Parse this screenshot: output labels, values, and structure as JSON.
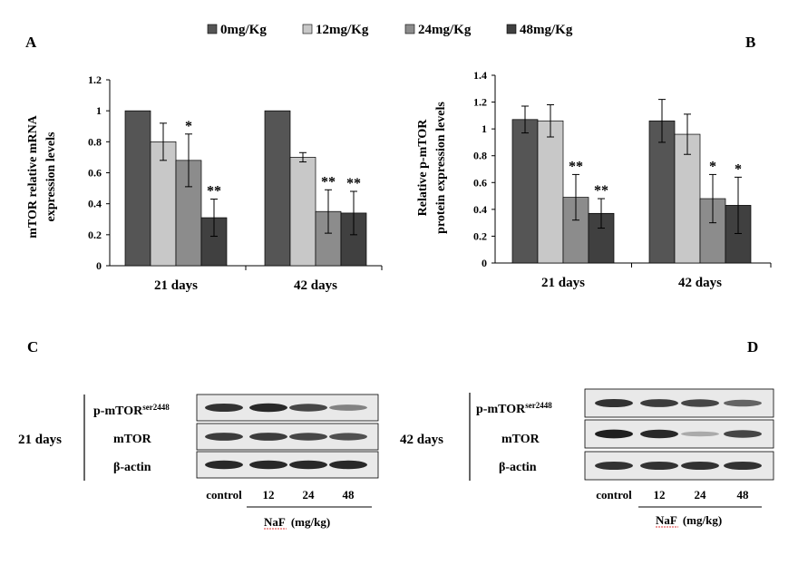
{
  "legend": [
    {
      "label": "0mg/Kg",
      "color": "#555555"
    },
    {
      "label": "12mg/Kg",
      "color": "#c8c8c8"
    },
    {
      "label": "24mg/Kg",
      "color": "#8c8c8c"
    },
    {
      "label": "48mg/Kg",
      "color": "#404040"
    }
  ],
  "chart_data": [
    {
      "type": "bar",
      "panel": "A",
      "ylabel_line1": "mTOR relative mRNA",
      "ylabel_line2": "expression levels",
      "ylim": [
        0,
        1.2
      ],
      "yticks": [
        "0",
        "0.2",
        "0.4",
        "0.6",
        "0.8",
        "1",
        "1.2"
      ],
      "categories": [
        "21 days",
        "42 days"
      ],
      "series": [
        {
          "name": "0mg/Kg",
          "values": [
            1.0,
            1.0
          ],
          "errors": [
            0,
            0
          ],
          "sig": [
            "",
            ""
          ]
        },
        {
          "name": "12mg/Kg",
          "values": [
            0.8,
            0.7
          ],
          "errors": [
            0.12,
            0.03
          ],
          "sig": [
            "",
            ""
          ]
        },
        {
          "name": "24mg/Kg",
          "values": [
            0.68,
            0.35
          ],
          "errors": [
            0.17,
            0.14
          ],
          "sig": [
            "*",
            "**"
          ]
        },
        {
          "name": "48mg/Kg",
          "values": [
            0.31,
            0.34
          ],
          "errors": [
            0.12,
            0.14
          ],
          "sig": [
            "**",
            "**"
          ]
        }
      ]
    },
    {
      "type": "bar",
      "panel": "B",
      "ylabel_line1": "Relative p-mTOR",
      "ylabel_line2": "protein expression levels",
      "ylim": [
        0,
        1.4
      ],
      "yticks": [
        "0",
        "0.2",
        "0.4",
        "0.6",
        "0.8",
        "1",
        "1.2",
        "1.4"
      ],
      "categories": [
        "21 days",
        "42 days"
      ],
      "series": [
        {
          "name": "0mg/Kg",
          "values": [
            1.07,
            1.06
          ],
          "errors": [
            0.1,
            0.16
          ],
          "sig": [
            "",
            ""
          ]
        },
        {
          "name": "12mg/Kg",
          "values": [
            1.06,
            0.96
          ],
          "errors": [
            0.12,
            0.15
          ],
          "sig": [
            "",
            ""
          ]
        },
        {
          "name": "24mg/Kg",
          "values": [
            0.49,
            0.48
          ],
          "errors": [
            0.17,
            0.18
          ],
          "sig": [
            "**",
            "*"
          ]
        },
        {
          "name": "48mg/Kg",
          "values": [
            0.37,
            0.43
          ],
          "errors": [
            0.11,
            0.21
          ],
          "sig": [
            "**",
            "*"
          ]
        }
      ]
    }
  ],
  "blots": [
    {
      "panel": "C",
      "group_label": "21 days",
      "rows": [
        {
          "name": "p-mTOR",
          "sup": "ser2448",
          "intensities": [
            0.85,
            0.9,
            0.75,
            0.45
          ]
        },
        {
          "name": "mTOR",
          "sup": "",
          "intensities": [
            0.8,
            0.8,
            0.75,
            0.7
          ]
        },
        {
          "name": "β-actin",
          "sup": "",
          "intensities": [
            0.9,
            0.9,
            0.9,
            0.9
          ]
        }
      ],
      "lanes": [
        "control",
        "12",
        "24",
        "48"
      ],
      "treatment": "NaF",
      "unit": "(mg/kg)"
    },
    {
      "panel": "D",
      "group_label": "42 days",
      "rows": [
        {
          "name": "p-mTOR",
          "sup": "ser2448",
          "intensities": [
            0.85,
            0.8,
            0.75,
            0.6
          ]
        },
        {
          "name": "mTOR",
          "sup": "",
          "intensities": [
            0.95,
            0.9,
            0.25,
            0.75
          ]
        },
        {
          "name": "β-actin",
          "sup": "",
          "intensities": [
            0.85,
            0.85,
            0.85,
            0.85
          ]
        }
      ],
      "lanes": [
        "control",
        "12",
        "24",
        "48"
      ],
      "treatment": "NaF",
      "unit": "(mg/kg)"
    }
  ]
}
